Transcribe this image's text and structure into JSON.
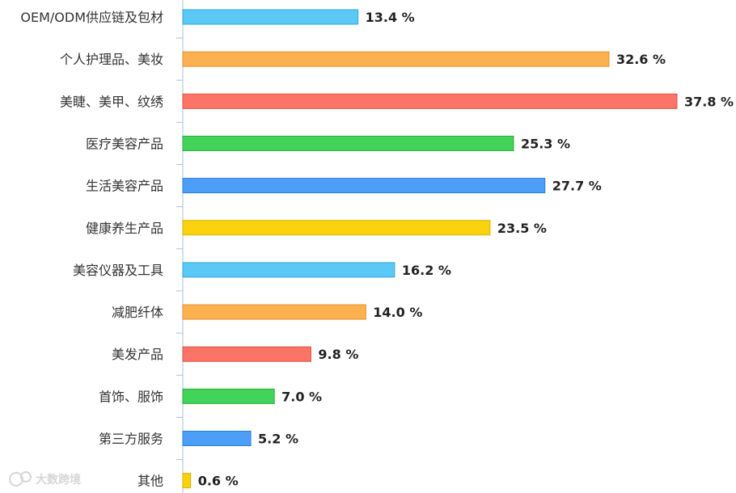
{
  "chart_data": {
    "type": "bar",
    "orientation": "horizontal",
    "title": "",
    "xlabel": "",
    "ylabel": "",
    "xlim": [
      0,
      40
    ],
    "value_suffix": " %",
    "grid": false,
    "legend": "none",
    "categories": [
      "OEM/ODM供应链及包材",
      "个人护理品、美妆",
      "美睫、美甲、纹绣",
      "医疗美容产品",
      "生活美容产品",
      "健康养生产品",
      "美容仪器及工具",
      "减肥纤体",
      "美发产品",
      "首饰、服饰",
      "第三方服务",
      "其他"
    ],
    "values": [
      13.4,
      32.6,
      37.8,
      25.3,
      27.7,
      23.5,
      16.2,
      14.0,
      9.8,
      7.0,
      5.2,
      0.6
    ],
    "value_labels": [
      "13.4 %",
      "32.6 %",
      "37.8 %",
      "25.3 %",
      "27.7 %",
      "23.5 %",
      "16.2 %",
      "14.0 %",
      "9.8 %",
      "7.0 %",
      "5.2 %",
      "0.6 %"
    ],
    "colors": [
      "#5bc8f5",
      "#fbb150",
      "#fb7468",
      "#44d35a",
      "#4d9ef6",
      "#fbd20e",
      "#5bc8f5",
      "#fbb150",
      "#fb7468",
      "#44d35a",
      "#4d9ef6",
      "#fbd20e"
    ],
    "bar_stroke_colors": [
      "#2fa8dc",
      "#e0922a",
      "#e0503f",
      "#24b03b",
      "#2a7ed8",
      "#dcb000",
      "#2fa8dc",
      "#e0922a",
      "#e0503f",
      "#24b03b",
      "#2a7ed8",
      "#dcb000"
    ],
    "axis_color": "#a8c0d8"
  },
  "watermark": {
    "text": "大数跨境",
    "icon": "chat-bubble-icon"
  }
}
